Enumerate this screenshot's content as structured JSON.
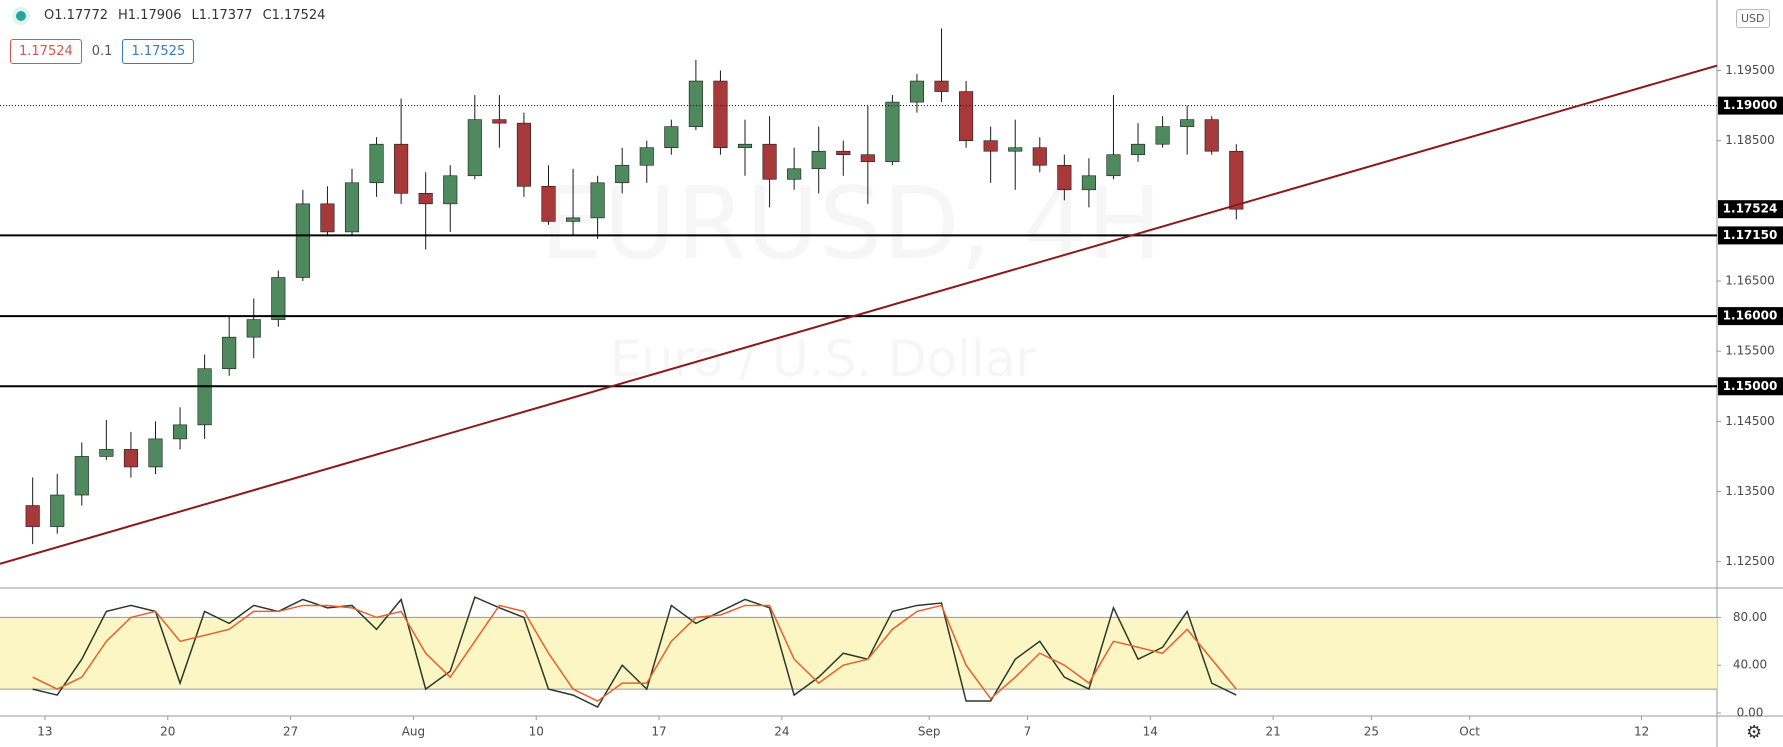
{
  "header": {
    "ohlc": [
      "O1.17772",
      "H1.17906",
      "L1.17377",
      "C1.17524"
    ],
    "bid": "1.17524",
    "spread": "0.1",
    "ask": "1.17525",
    "currency": "USD",
    "watermark": "EURUSD, 4H",
    "watermark_sub": "Euro / U.S. Dollar"
  },
  "chart_data": [
    {
      "type": "candlestick",
      "up_color": "#4e8a5e",
      "down_color": "#a8393a",
      "wick_color": "#1a1a1a",
      "xlim": [
        -0.83,
        69.07
      ],
      "ylim": [
        1.12125,
        1.20505
      ],
      "open": [
        1.133,
        1.13,
        1.1345,
        1.14,
        1.141,
        1.1385,
        1.1425,
        1.1445,
        1.1525,
        1.157,
        1.1595,
        1.1655,
        1.176,
        1.172,
        1.179,
        1.1845,
        1.1775,
        1.176,
        1.18,
        1.188,
        1.1875,
        1.1785,
        1.1735,
        1.174,
        1.179,
        1.1815,
        1.184,
        1.187,
        1.1935,
        1.184,
        1.1845,
        1.1795,
        1.181,
        1.1835,
        1.183,
        1.182,
        1.1905,
        1.1935,
        1.192,
        1.185,
        1.1835,
        1.184,
        1.1815,
        1.178,
        1.18,
        1.183,
        1.1845,
        1.187,
        1.188,
        1.1835
      ],
      "high": [
        1.137,
        1.1375,
        1.142,
        1.1452,
        1.1435,
        1.145,
        1.147,
        1.1545,
        1.16,
        1.1625,
        1.1665,
        1.178,
        1.1785,
        1.181,
        1.1855,
        1.191,
        1.1805,
        1.1815,
        1.1915,
        1.1915,
        1.189,
        1.1815,
        1.181,
        1.18,
        1.184,
        1.185,
        1.188,
        1.1965,
        1.195,
        1.188,
        1.1885,
        1.184,
        1.187,
        1.185,
        1.19,
        1.1915,
        1.1945,
        1.201,
        1.1935,
        1.187,
        1.188,
        1.1855,
        1.183,
        1.1825,
        1.1915,
        1.1875,
        1.1885,
        1.19,
        1.1885,
        1.1845
      ],
      "low": [
        1.1275,
        1.129,
        1.133,
        1.1395,
        1.137,
        1.1375,
        1.141,
        1.1425,
        1.1515,
        1.154,
        1.1585,
        1.165,
        1.1715,
        1.1715,
        1.177,
        1.176,
        1.1695,
        1.172,
        1.1795,
        1.184,
        1.177,
        1.173,
        1.1715,
        1.171,
        1.1775,
        1.179,
        1.183,
        1.1865,
        1.183,
        1.18,
        1.1755,
        1.178,
        1.1775,
        1.18,
        1.176,
        1.1815,
        1.189,
        1.1905,
        1.184,
        1.179,
        1.178,
        1.1805,
        1.1765,
        1.1755,
        1.1795,
        1.182,
        1.184,
        1.183,
        1.183,
        1.17377
      ],
      "close": [
        1.13,
        1.1345,
        1.14,
        1.141,
        1.1385,
        1.1425,
        1.1445,
        1.1525,
        1.157,
        1.1595,
        1.1655,
        1.176,
        1.172,
        1.179,
        1.1845,
        1.1775,
        1.176,
        1.18,
        1.188,
        1.1875,
        1.1785,
        1.1735,
        1.174,
        1.179,
        1.1815,
        1.184,
        1.187,
        1.1935,
        1.184,
        1.1845,
        1.1795,
        1.181,
        1.1835,
        1.183,
        1.182,
        1.1905,
        1.1935,
        1.192,
        1.185,
        1.1835,
        1.184,
        1.1815,
        1.178,
        1.18,
        1.183,
        1.1845,
        1.187,
        1.188,
        1.1835,
        1.17524
      ],
      "yticks": [
        {
          "value": 1.125,
          "label": "1.12500"
        },
        {
          "value": 1.135,
          "label": "1.13500"
        },
        {
          "value": 1.145,
          "label": "1.14500"
        },
        {
          "value": 1.155,
          "label": "1.15500"
        },
        {
          "value": 1.165,
          "label": "1.16500"
        },
        {
          "value": 1.185,
          "label": "1.18500"
        },
        {
          "value": 1.195,
          "label": "1.19500"
        }
      ],
      "levels": [
        {
          "value": 1.19,
          "label": "1.19000",
          "style": "dotted"
        },
        {
          "value": 1.1715,
          "label": "1.17150",
          "style": "solid"
        },
        {
          "value": 1.16,
          "label": "1.16000",
          "style": "solid"
        },
        {
          "value": 1.15,
          "label": "1.15000",
          "style": "solid"
        }
      ],
      "last_price": {
        "value": 1.17524,
        "label": "1.17524"
      },
      "trendline": {
        "color": "#8b1a1a",
        "x": [
          -0.83,
          69.07
        ],
        "y": [
          1.1247,
          1.1957
        ]
      }
    },
    {
      "type": "line",
      "band": [
        20,
        80
      ],
      "band_color": "#fbf6c4",
      "xlim": [
        -0.83,
        69.07
      ],
      "ylim": [
        -2.5,
        104.6
      ],
      "yticks": [
        {
          "value": 0,
          "label": "0.00"
        },
        {
          "value": 40,
          "label": "40.00"
        },
        {
          "value": 80,
          "label": "80.00"
        }
      ],
      "xticks": [
        {
          "value": 1,
          "label": "13"
        },
        {
          "value": 6,
          "label": "20"
        },
        {
          "value": 11,
          "label": "27"
        },
        {
          "value": 16,
          "label": "Aug"
        },
        {
          "value": 21,
          "label": "10"
        },
        {
          "value": 26,
          "label": "17"
        },
        {
          "value": 31,
          "label": "24"
        },
        {
          "value": 37,
          "label": "Sep"
        },
        {
          "value": 41,
          "label": "7"
        },
        {
          "value": 46,
          "label": "14"
        },
        {
          "value": 51,
          "label": "21"
        },
        {
          "value": 55,
          "label": "25"
        },
        {
          "value": 59,
          "label": "Oct"
        },
        {
          "value": 66,
          "label": "12"
        }
      ],
      "series": [
        {
          "color": "#2b3a2b",
          "values": [
            20,
            15,
            45,
            85,
            90,
            85,
            25,
            85,
            75,
            90,
            85,
            95,
            88,
            90,
            70,
            95,
            20,
            35,
            97,
            88,
            80,
            20,
            15,
            5,
            40,
            20,
            90,
            75,
            85,
            95,
            88,
            15,
            30,
            50,
            45,
            85,
            90,
            92,
            10,
            10,
            45,
            60,
            30,
            20,
            88,
            45,
            55,
            85,
            25,
            15
          ]
        },
        {
          "color": "#e8602c",
          "values": [
            30,
            20,
            30,
            60,
            80,
            85,
            60,
            65,
            70,
            85,
            85,
            90,
            90,
            88,
            80,
            85,
            50,
            30,
            60,
            90,
            85,
            50,
            20,
            10,
            25,
            25,
            60,
            80,
            82,
            90,
            90,
            45,
            25,
            40,
            45,
            70,
            85,
            90,
            40,
            12,
            30,
            50,
            40,
            25,
            60,
            55,
            50,
            70,
            45,
            20
          ]
        }
      ]
    }
  ]
}
